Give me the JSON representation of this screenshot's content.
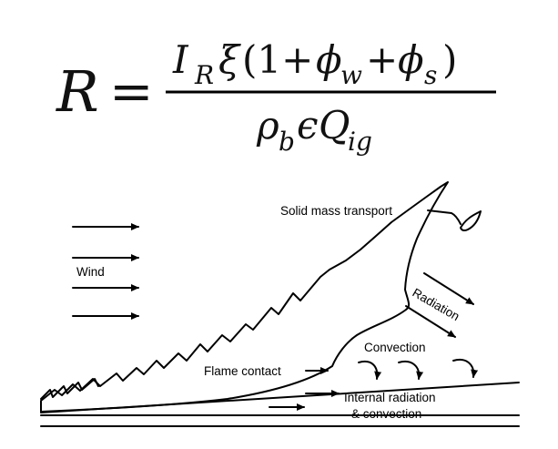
{
  "equation": {
    "lhs": "R",
    "equals": "=",
    "numerator": {
      "I": "I",
      "I_sub": "R",
      "xi": "ξ",
      "open_paren": "(1+",
      "phi_w": "ϕ",
      "phi_w_sub": "w",
      "plus": "+",
      "phi_s": "ϕ",
      "phi_s_sub": "s",
      "close_paren": ")"
    },
    "denominator": {
      "rho": "ρ",
      "rho_sub": "b",
      "epsilon": "ϵ",
      "Q": "Q",
      "Q_sub": "ig"
    }
  },
  "labels": {
    "wind": "Wind",
    "solid_mass_transport": "Solid mass transport",
    "radiation": "Radiation",
    "convection": "Convection",
    "flame_contact": "Flame contact",
    "internal_line1": "Internal radiation",
    "internal_line2": "& convection"
  },
  "colors": {
    "ink": "#000000",
    "background": "#ffffff"
  }
}
